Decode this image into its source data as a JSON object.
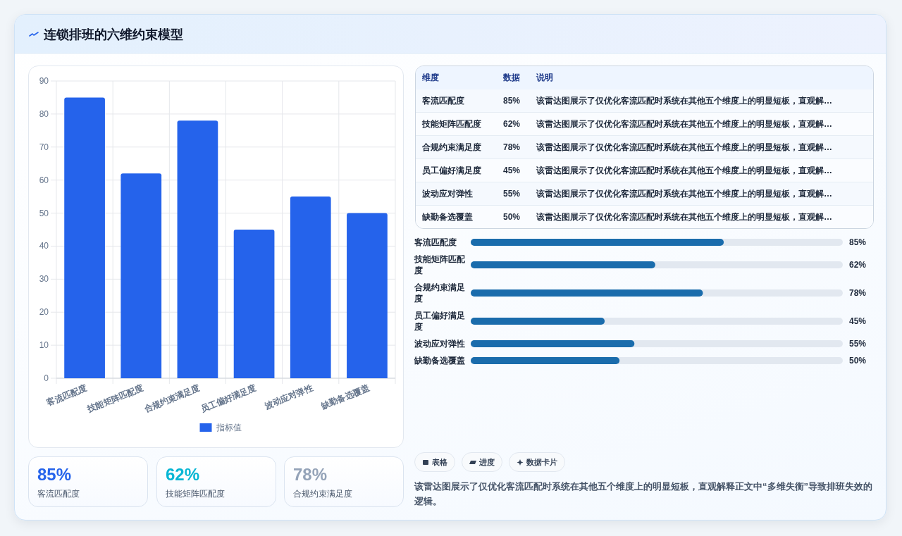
{
  "chart_data": [
    {
      "type": "bar",
      "title": "连锁排班的六维约束模型",
      "categories": [
        "客流匹配度",
        "技能矩阵匹配度",
        "合规约束满足度",
        "员工偏好满足度",
        "波动应对弹性",
        "缺勤备选覆盖"
      ],
      "series": [
        {
          "name": "指标值",
          "color": "#2563eb",
          "values": [
            85,
            62,
            78,
            45,
            55,
            50
          ]
        }
      ],
      "ylim": [
        0,
        90
      ],
      "yticks": [
        0,
        10,
        20,
        30,
        40,
        50,
        60,
        70,
        80,
        90
      ],
      "grid": true,
      "legend": "bottom"
    },
    {
      "type": "other",
      "categories": [
        "客流匹配度",
        "技能矩阵匹配度",
        "合规约束满足度",
        "员工偏好满足度",
        "波动应对弹性",
        "缺勤备选覆盖"
      ],
      "value_labels": [
        "85%",
        "62%",
        "78%",
        "45%",
        "55%",
        "50%"
      ],
      "annotations": [
        "维度",
        "数据",
        "说明",
        "该雷达图展示了仅优化客流匹配时系统在其他五个维度上的明显短板，直观解…",
        "该雷达图展示了仅优化客流匹配时系统在其他五个维度上的明显短板，直观解…",
        "该雷达图展示了仅优化客流匹配时系统在其他五个维度上的明显短板，直观解…",
        "该雷达图展示了仅优化客流匹配时系统在其他五个维度上的明显短板，直观解…",
        "该雷达图展示了仅优化客流匹配时系统在其他五个维度上的明显短板，直观解…",
        "该雷达图展示了仅优化客流匹配时系统在其他五个维度上的明显短板，直观解…"
      ]
    },
    {
      "type": "bar",
      "orientation": "horizontal",
      "categories": [
        "客流匹配度",
        "技能矩阵匹配度",
        "合规约束满足度",
        "员工偏好满足度",
        "波动应对弹性",
        "缺勤备选覆盖"
      ],
      "values": [
        85,
        62,
        78,
        45,
        55,
        50
      ],
      "color": "#1a6cac",
      "value_labels": [
        "85%",
        "62%",
        "78%",
        "45%",
        "55%",
        "50%"
      ],
      "xlim": [
        0,
        125
      ],
      "tick_labels": "y"
    },
    {
      "type": "other",
      "categories": [
        "客流匹配度",
        "技能矩阵匹配度",
        "合规约束满足度"
      ],
      "value_labels": [
        "85%",
        "62%",
        "78%"
      ]
    },
    {
      "type": "other",
      "annotations": [
        "表格",
        "进度",
        "数据卡片",
        "该雷达图展示了仅优化客流匹配时系统在其他五个维度上的明显短板，直观解释正文中“多维失衡”导致排班失效的逻辑。"
      ]
    }
  ]
}
